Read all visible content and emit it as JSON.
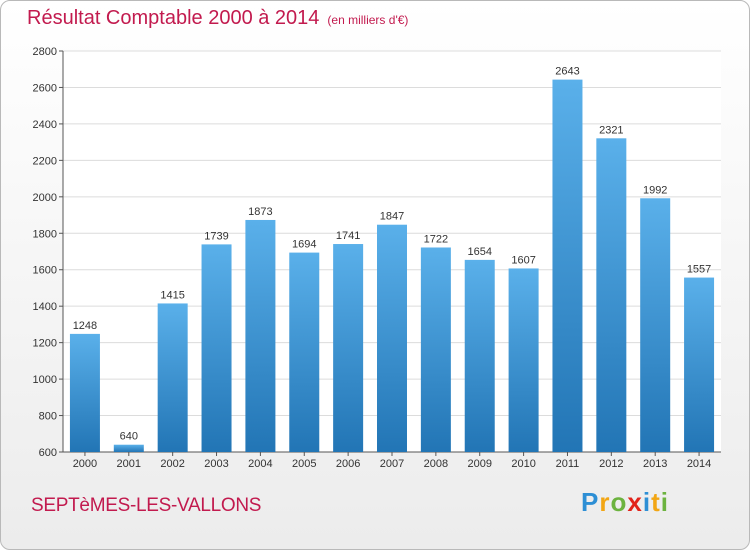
{
  "chart_data": {
    "type": "bar",
    "title": "Résultat Comptable 2000 à 2014",
    "subtitle": "(en milliers d'€)",
    "categories": [
      "2000",
      "2001",
      "2002",
      "2003",
      "2004",
      "2005",
      "2006",
      "2007",
      "2008",
      "2009",
      "2010",
      "2011",
      "2012",
      "2013",
      "2014"
    ],
    "values": [
      1248,
      640,
      1415,
      1739,
      1873,
      1694,
      1741,
      1847,
      1722,
      1654,
      1607,
      2643,
      2321,
      1992,
      1557
    ],
    "ylim": [
      600,
      2800
    ],
    "yticks": [
      600,
      800,
      1000,
      1200,
      1400,
      1600,
      1800,
      2000,
      2200,
      2400,
      2600,
      2800
    ],
    "grid": true,
    "colors": {
      "bar_top": "#5ab0ea",
      "bar_bottom": "#2275b5",
      "grid": "#dcdcdc",
      "accent": "#c21a4e"
    }
  },
  "footer": {
    "commune": "SEPTèMES-LES-VALLONS",
    "logo": [
      {
        "ch": "P",
        "color": "#2d8fd5"
      },
      {
        "ch": "r",
        "color": "#f2a614"
      },
      {
        "ch": "o",
        "color": "#6cb33f"
      },
      {
        "ch": "x",
        "color": "#e2231a"
      },
      {
        "ch": "i",
        "color": "#2d8fd5"
      },
      {
        "ch": "t",
        "color": "#f2a614"
      },
      {
        "ch": "i",
        "color": "#6cb33f"
      }
    ]
  }
}
